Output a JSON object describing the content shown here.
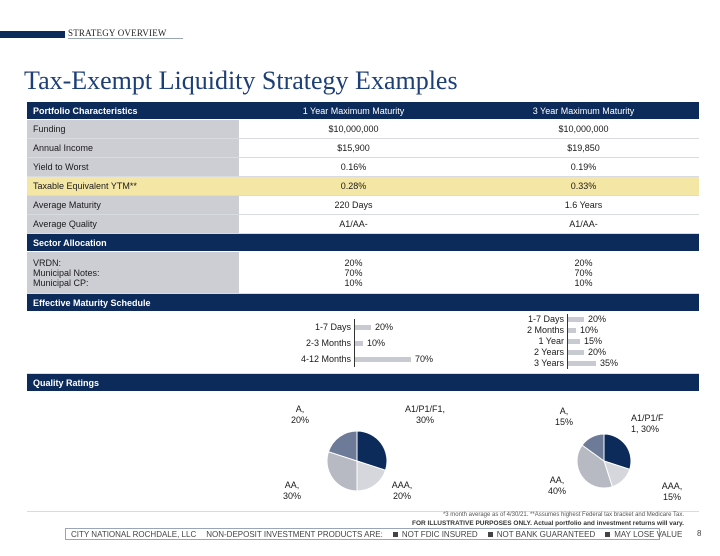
{
  "header": {
    "section": "STRATEGY OVERVIEW",
    "title": "Tax-Exempt Liquidity Strategy Examples"
  },
  "table": {
    "columns": [
      "Portfolio Characteristics",
      "1 Year Maximum Maturity",
      "3 Year Maximum Maturity"
    ],
    "rows": [
      {
        "label": "Funding",
        "v1": "$10,000,000",
        "v3": "$10,000,000"
      },
      {
        "label": "Annual Income",
        "v1": "$15,900",
        "v3": "$19,850"
      },
      {
        "label": "Yield to Worst",
        "v1": "0.16%",
        "v3": "0.19%"
      },
      {
        "label": "Taxable Equivalent YTM**",
        "v1": "0.28%",
        "v3": "0.33%"
      },
      {
        "label": "Average Maturity",
        "v1": "220 Days",
        "v3": "1.6 Years"
      },
      {
        "label": "Average Quality",
        "v1": "A1/AA-",
        "v3": "A1/AA-"
      }
    ]
  },
  "sector": {
    "title": "Sector Allocation",
    "labels": [
      "VRDN:",
      "Municipal Notes:",
      "Municipal CP:"
    ],
    "v1": [
      "20%",
      "70%",
      "10%"
    ],
    "v3": [
      "20%",
      "70%",
      "10%"
    ]
  },
  "schedule": {
    "title": "Effective Maturity Schedule"
  },
  "quality": {
    "title": "Quality Ratings"
  },
  "chart_data": [
    {
      "type": "bar",
      "orientation": "horizontal",
      "categories": [
        "1-7 Days",
        "2-3 Months",
        "4-12 Months"
      ],
      "values": [
        20,
        10,
        70
      ],
      "value_labels": [
        "20%",
        "10%",
        "70%"
      ]
    },
    {
      "type": "bar",
      "orientation": "horizontal",
      "categories": [
        "1-7 Days",
        "2 Months",
        "1 Year",
        "2 Years",
        "3 Years"
      ],
      "values": [
        20,
        10,
        15,
        20,
        35
      ],
      "value_labels": [
        "20%",
        "10%",
        "15%",
        "20%",
        "35%"
      ]
    },
    {
      "type": "pie",
      "categories": [
        "A1/P1/F1",
        "AAA",
        "AA",
        "A"
      ],
      "values": [
        30,
        20,
        30,
        20
      ],
      "colors": [
        "#0c2b5b",
        "#d5d7dd",
        "#b7bac3",
        "#6d7a98"
      ]
    },
    {
      "type": "pie",
      "categories": [
        "A1/P1/F",
        "AAA",
        "AA",
        "A"
      ],
      "values": [
        30,
        15,
        40,
        15
      ],
      "colors": [
        "#0c2b5b",
        "#d5d7dd",
        "#b7bac3",
        "#6d7a98"
      ]
    }
  ],
  "pie_labels": {
    "left": {
      "a": [
        "A,",
        "20%"
      ],
      "a1": [
        "A1/P1/F1,",
        "30%"
      ],
      "aa": [
        "AA,",
        "30%"
      ],
      "aaa": [
        "AAA,",
        "20%"
      ]
    },
    "right": {
      "a": [
        "A,",
        "15%"
      ],
      "a1": [
        "A1/P1/F",
        "1, 30%"
      ],
      "aa": [
        "AA,",
        "40%"
      ],
      "aaa": [
        "AAA,",
        "15%"
      ]
    }
  },
  "footer": {
    "note1": "*3 month average as of 4/30/21. **Assumes highest Federal tax bracket and Medicare Tax.",
    "note2": "FOR ILLUSTRATIVE PURPOSES ONLY. Actual portfolio and investment returns will vary.",
    "company": "CITY NATIONAL ROCHDALE, LLC",
    "disclaimer": "NON-DEPOSIT INVESTMENT PRODUCTS ARE:",
    "items": [
      "NOT FDIC INSURED",
      "NOT BANK GUARANTEED",
      "MAY LOSE VALUE"
    ],
    "page": "8"
  }
}
